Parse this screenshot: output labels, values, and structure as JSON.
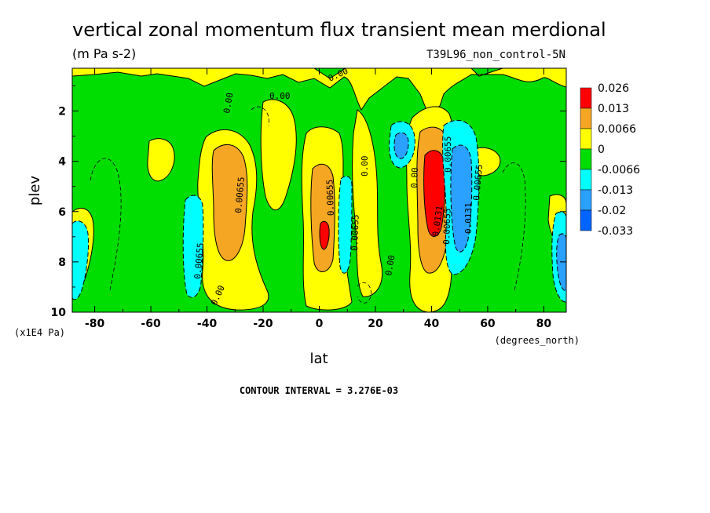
{
  "chart_data": {
    "type": "heatmap",
    "title": "vertical zonal momentum flux transient mean merdional",
    "units": "(m Pa s-2)",
    "run_name": "T39L96_non_control-5N",
    "xlabel": "lat",
    "x_units": "(degrees_north)",
    "ylabel": "plev",
    "y_units": "(x1E4 Pa)",
    "xlim": [
      -88,
      88
    ],
    "ylim": [
      10,
      0.3
    ],
    "x_ticks": [
      "-80",
      "-60",
      "-40",
      "-20",
      "0",
      "20",
      "40",
      "60",
      "80"
    ],
    "y_ticks": [
      "2",
      "4",
      "6",
      "8",
      "10"
    ],
    "colorbar": {
      "levels": [
        "0.026",
        "0.013",
        "0.0066",
        "0",
        "-0.0066",
        "-0.013",
        "-0.02",
        "-0.033"
      ],
      "colors": [
        "#ff0000",
        "#f5a623",
        "#ffff00",
        "#00dd00",
        "#00ffff",
        "#2aa0ff",
        "#0064ff"
      ]
    },
    "contour_labels": [
      "0.00",
      "0.00",
      "0.00",
      "0.00655",
      "0.00655",
      "0.00655",
      "0.00",
      "0.00655",
      "0.00",
      "0.00",
      "0.0131",
      "0.00655",
      "0.0131",
      "0.00655",
      "0.00",
      "0.00655"
    ],
    "regions": [
      {
        "kind": "positive",
        "x0": -40,
        "x1": -22,
        "y0": 2.6,
        "y1": 9.8,
        "peak": 0.013
      },
      {
        "kind": "positive",
        "x0": -6,
        "x1": 8,
        "y0": 2.3,
        "y1": 9.9,
        "peak": 0.0196
      },
      {
        "kind": "positive",
        "x0": 34,
        "x1": 46,
        "y0": 1.6,
        "y1": 9.9,
        "peak": 0.029
      },
      {
        "kind": "negative",
        "x0": 28,
        "x1": 34,
        "y0": 2.5,
        "y1": 4.3,
        "peak": -0.013
      },
      {
        "kind": "negative",
        "x0": 46,
        "x1": 58,
        "y0": 2.3,
        "y1": 8.8,
        "peak": -0.0196
      },
      {
        "kind": "negative",
        "x0": -50,
        "x1": -42,
        "y0": 5.2,
        "y1": 9.6,
        "peak": -0.0131
      },
      {
        "kind": "negative",
        "x0": 7,
        "x1": 12,
        "y0": 5.0,
        "y1": 8.4,
        "peak": -0.0131
      },
      {
        "kind": "negative",
        "x0": -88,
        "x1": -82,
        "y0": 6.6,
        "y1": 9.3,
        "peak": -0.0131
      },
      {
        "kind": "negative",
        "x0": 82,
        "x1": 88,
        "y0": 6.5,
        "y1": 9.4,
        "peak": -0.0196
      }
    ],
    "contour_interval_text": "CONTOUR INTERVAL = 3.276E-03",
    "grid": false,
    "legend": "right"
  }
}
